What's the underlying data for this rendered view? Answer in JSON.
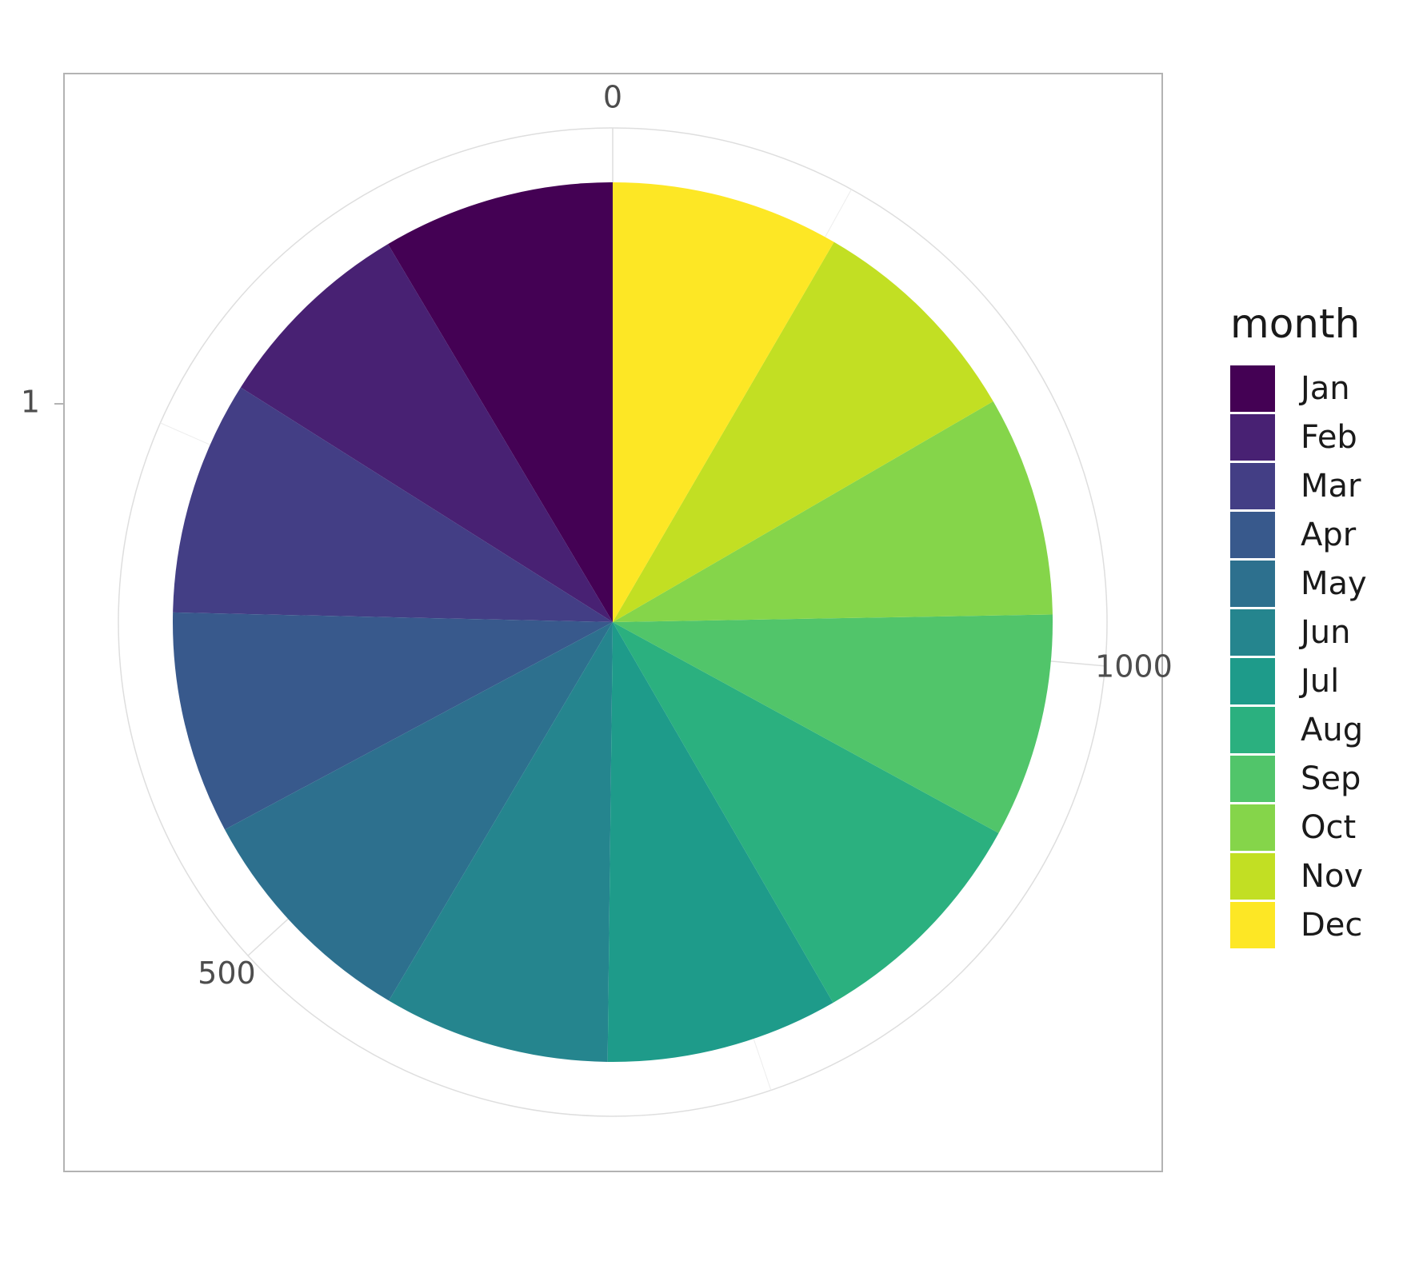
{
  "chart_data": {
    "type": "pie",
    "legend_title": "month",
    "legend_position": "right",
    "categories": [
      "Jan",
      "Feb",
      "Mar",
      "Apr",
      "May",
      "Jun",
      "Jul",
      "Aug",
      "Sep",
      "Oct",
      "Nov",
      "Dec"
    ],
    "values": [
      116,
      102,
      117,
      111,
      118,
      113,
      116,
      118,
      112,
      110,
      112,
      114
    ],
    "colors": [
      "#440154",
      "#482173",
      "#433E85",
      "#38598C",
      "#2D708E",
      "#25858E",
      "#1E9B8A",
      "#2BB07F",
      "#51C56A",
      "#85D54A",
      "#C2DF23",
      "#FDE725"
    ],
    "angle_axis": {
      "ticks": [
        0,
        500,
        1000
      ],
      "labels": [
        "0",
        "500",
        "1000"
      ]
    },
    "radial_axis": {
      "ticks": [
        1
      ],
      "labels": [
        "1"
      ]
    },
    "grid": true
  }
}
